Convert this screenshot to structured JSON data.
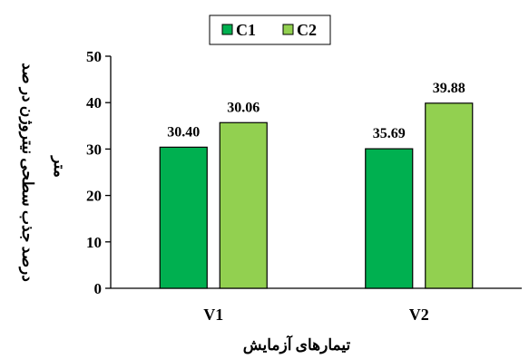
{
  "chart_data": {
    "type": "bar",
    "categories": [
      "V1",
      "V2"
    ],
    "series": [
      {
        "name": "C1",
        "values": [
          30.4,
          30.06
        ],
        "color": "#00b050"
      },
      {
        "name": "C2",
        "values": [
          35.69,
          39.88
        ],
        "color": "#92d050"
      }
    ],
    "data_labels": [
      [
        "30.40",
        "35.69"
      ],
      [
        "30.06",
        "39.88"
      ]
    ],
    "ylabel": "درصد جذب سطحی نیتروژن در صد متر",
    "xlabel": "تیمارهای آزمایش",
    "ylim": [
      0,
      50
    ],
    "yticks": [
      0,
      10,
      20,
      30,
      40,
      50
    ],
    "legend_position": "top-center",
    "grid": false
  }
}
